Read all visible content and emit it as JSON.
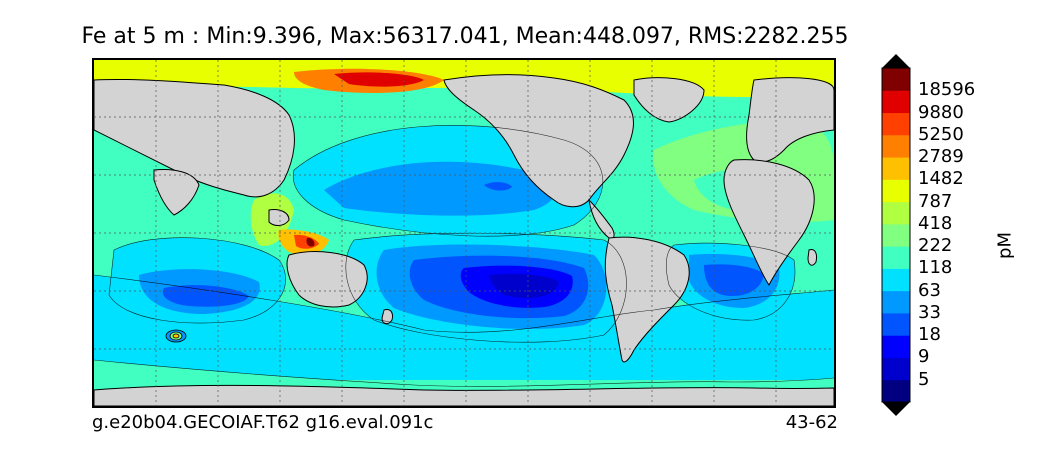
{
  "title": "Fe at 5 m : Min:9.396, Max:56317.041, Mean:448.097, RMS:2282.255",
  "footer": {
    "case_name": "g.e20b04.GECOIAF.T62 g16.eval.091c",
    "years": "43-62"
  },
  "colorbar": {
    "units": "pM",
    "labels": [
      "18596",
      "9880",
      "5250",
      "2789",
      "1482",
      "787",
      "418",
      "222",
      "118",
      "63",
      "33",
      "18",
      "9",
      "5"
    ],
    "colors": [
      "#000080",
      "#0000cd",
      "#0000ff",
      "#0055ff",
      "#0099ff",
      "#00e0ff",
      "#40ffc0",
      "#80ff80",
      "#b0ff40",
      "#e8ff00",
      "#ffc000",
      "#ff7f00",
      "#ff4000",
      "#e00000",
      "#800000"
    ]
  },
  "map": {
    "land_color": "#d3d3d3"
  }
}
